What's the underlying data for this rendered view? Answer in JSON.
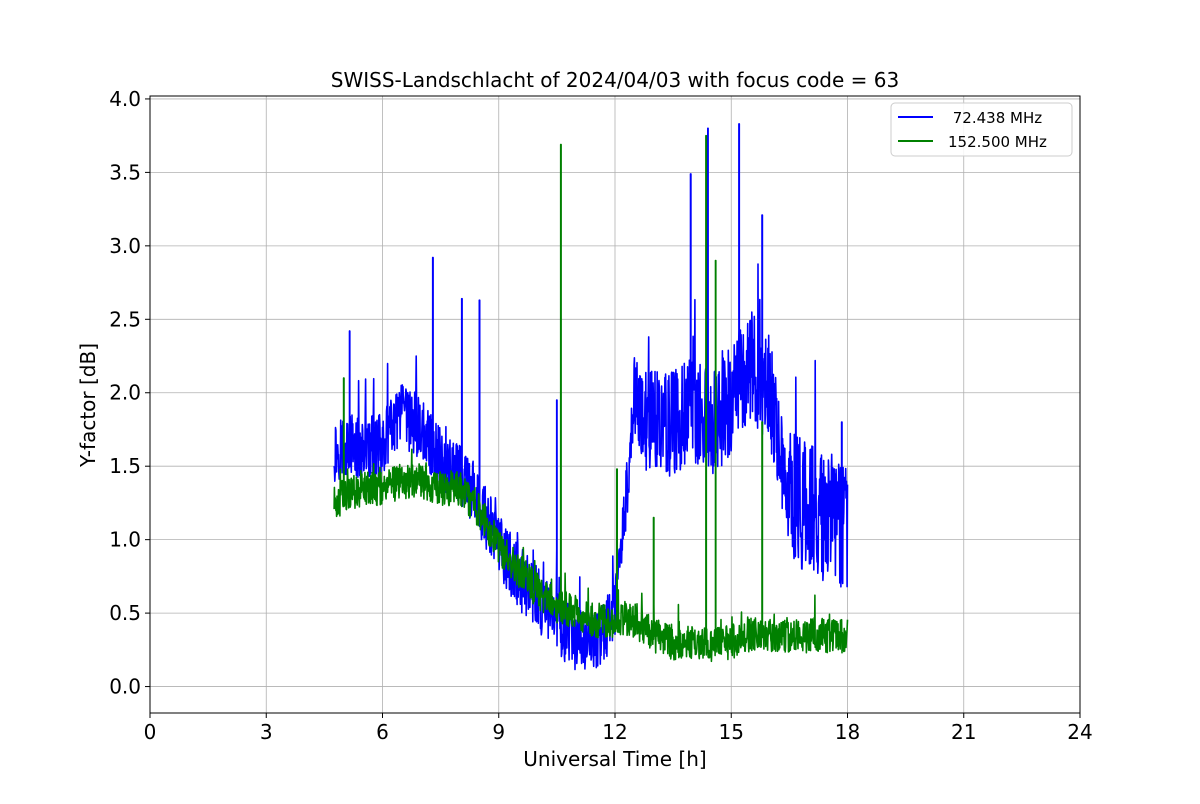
{
  "chart_data": {
    "type": "line",
    "title": "SWISS-Landschlacht of 2024/04/03 with focus code = 63",
    "xlabel": "Universal Time [h]",
    "ylabel": "Y-factor [dB]",
    "xlim": [
      0,
      24
    ],
    "ylim": [
      -0.18,
      4.02
    ],
    "xticks": [
      "0",
      "3",
      "6",
      "9",
      "12",
      "15",
      "18",
      "21",
      "24"
    ],
    "yticks": [
      "0.0",
      "0.5",
      "1.0",
      "1.5",
      "2.0",
      "2.5",
      "3.0",
      "3.5",
      "4.0"
    ],
    "grid": true,
    "legend_position": "top-right",
    "x": [
      4.75,
      5.0,
      5.5,
      6.0,
      6.5,
      7.0,
      7.5,
      8.0,
      8.5,
      9.0,
      9.5,
      10.0,
      10.5,
      11.0,
      11.5,
      12.0,
      12.5,
      13.0,
      13.5,
      14.0,
      14.5,
      15.0,
      15.5,
      16.0,
      16.5,
      17.0,
      17.5,
      18.0
    ],
    "series": [
      {
        "name": " 72.438 MHz",
        "color": "#0000ff",
        "values": [
          1.6,
          1.65,
          1.6,
          1.65,
          1.85,
          1.75,
          1.55,
          1.45,
          1.25,
          0.95,
          0.75,
          0.6,
          0.45,
          0.3,
          0.3,
          0.5,
          1.9,
          1.8,
          1.8,
          1.9,
          1.75,
          1.95,
          2.2,
          2.0,
          1.3,
          1.2,
          1.15,
          1.1
        ],
        "peaks": [
          [
            5.15,
            2.42
          ],
          [
            7.3,
            2.92
          ],
          [
            8.05,
            2.64
          ],
          [
            8.5,
            2.63
          ],
          [
            10.5,
            1.95
          ],
          [
            13.95,
            3.49
          ],
          [
            14.4,
            3.8
          ],
          [
            15.2,
            3.83
          ],
          [
            15.8,
            3.21
          ],
          [
            17.85,
            1.8
          ]
        ]
      },
      {
        "name": "152.500 MHz",
        "color": "#008000",
        "values": [
          1.25,
          1.3,
          1.35,
          1.35,
          1.4,
          1.4,
          1.35,
          1.35,
          1.2,
          0.95,
          0.8,
          0.65,
          0.55,
          0.5,
          0.45,
          0.45,
          0.45,
          0.35,
          0.3,
          0.3,
          0.28,
          0.3,
          0.35,
          0.35,
          0.35,
          0.35,
          0.35,
          0.35
        ],
        "peaks": [
          [
            5.0,
            2.1
          ],
          [
            10.6,
            3.69
          ],
          [
            12.05,
            1.48
          ],
          [
            13.0,
            1.15
          ],
          [
            14.35,
            3.75
          ],
          [
            14.6,
            2.9
          ],
          [
            15.8,
            1.8
          ]
        ]
      }
    ]
  }
}
